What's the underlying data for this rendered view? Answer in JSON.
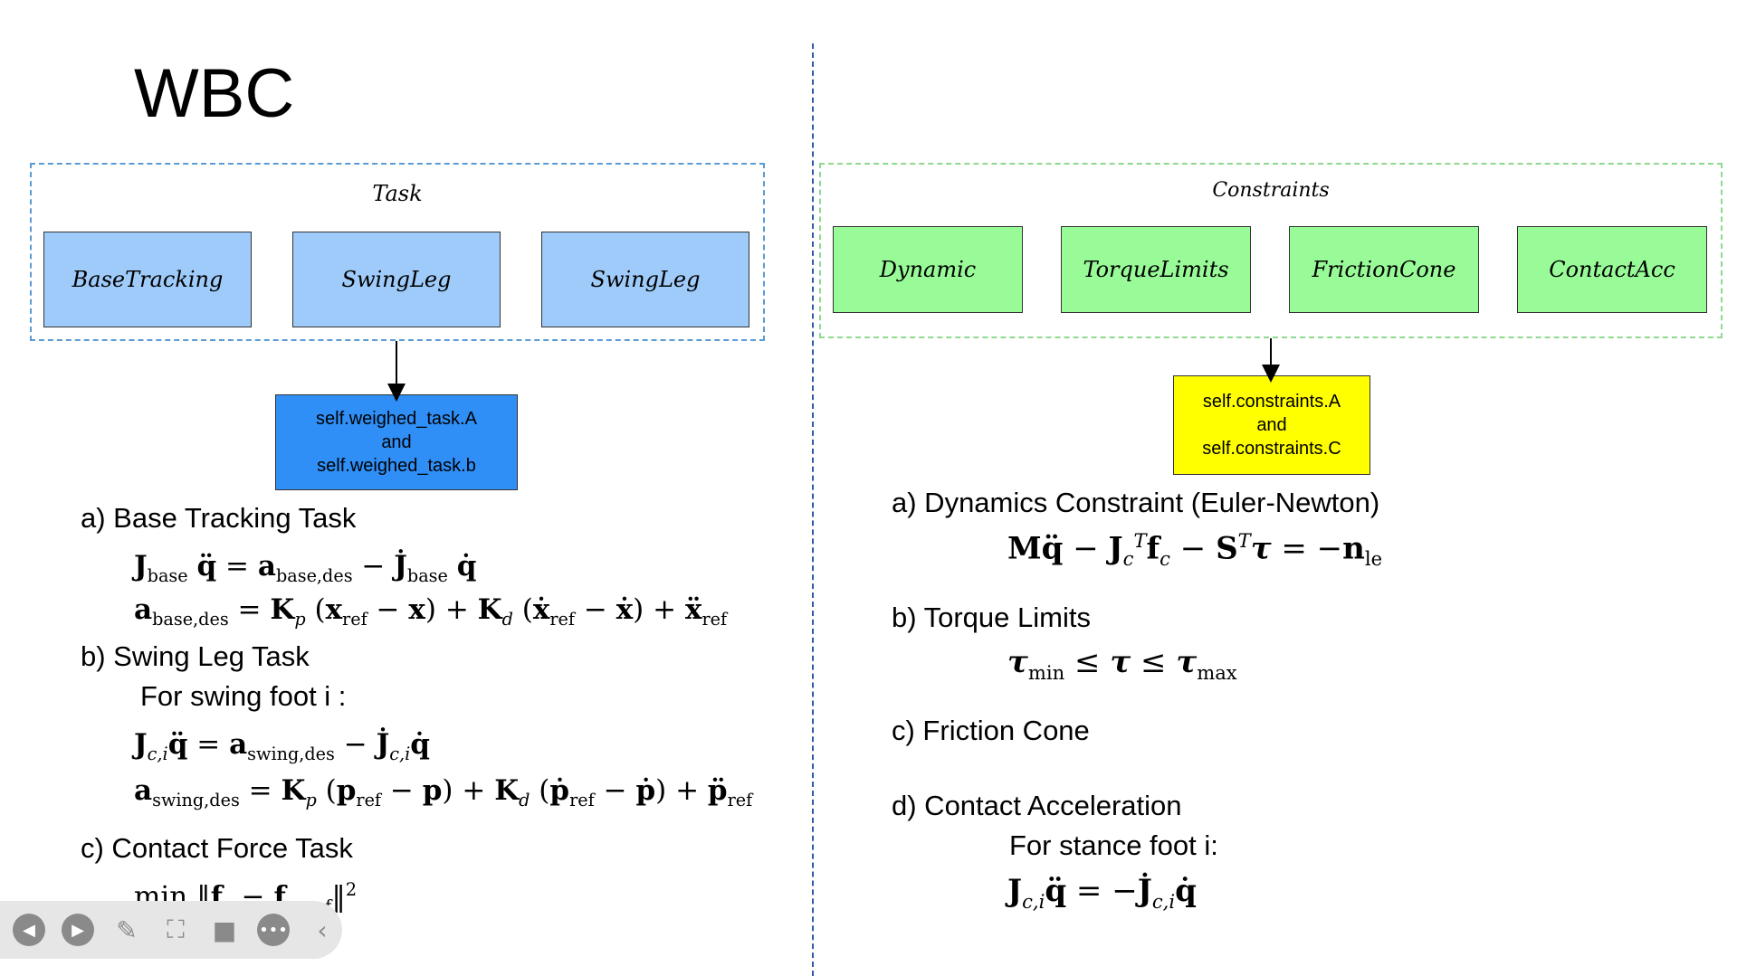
{
  "slide": {
    "title": "WBC"
  },
  "task": {
    "group_label": "Task",
    "blocks": [
      "BaseTracking",
      "SwingLeg",
      "SwingLeg"
    ],
    "result_lines": [
      "self.weighed_task.A",
      "and",
      "self.weighed_task.b"
    ],
    "colors": {
      "block": "#9fcbfa",
      "result": "#2f8ff7",
      "border": "#5b9bd5"
    }
  },
  "constraints": {
    "group_label": "Constraints",
    "blocks": [
      "Dynamic",
      "TorqueLimits",
      "FrictionCone",
      "ContactAcc"
    ],
    "result_lines": [
      "self.constraints.A",
      "and",
      "self.constraints.C"
    ],
    "colors": {
      "block": "#98fb98",
      "result": "#ffff00",
      "border": "#8fd98f"
    }
  },
  "left_sections": {
    "a_heading": "a) Base Tracking Task",
    "b_heading": "b) Swing Leg Task",
    "b_sub": "For swing foot i :",
    "c_heading": "c) Contact Force Task"
  },
  "right_sections": {
    "a_heading": "a) Dynamics Constraint (Euler-Newton)",
    "b_heading": "b) Torque Limits",
    "c_heading": "c) Friction Cone",
    "d_heading": "d) Contact Acceleration",
    "d_sub": "For stance foot i:"
  },
  "toolbar": {
    "icons": [
      "prev-icon",
      "play-icon",
      "pen-icon",
      "focus-icon",
      "camera-icon",
      "more-icon",
      "collapse-icon"
    ]
  }
}
